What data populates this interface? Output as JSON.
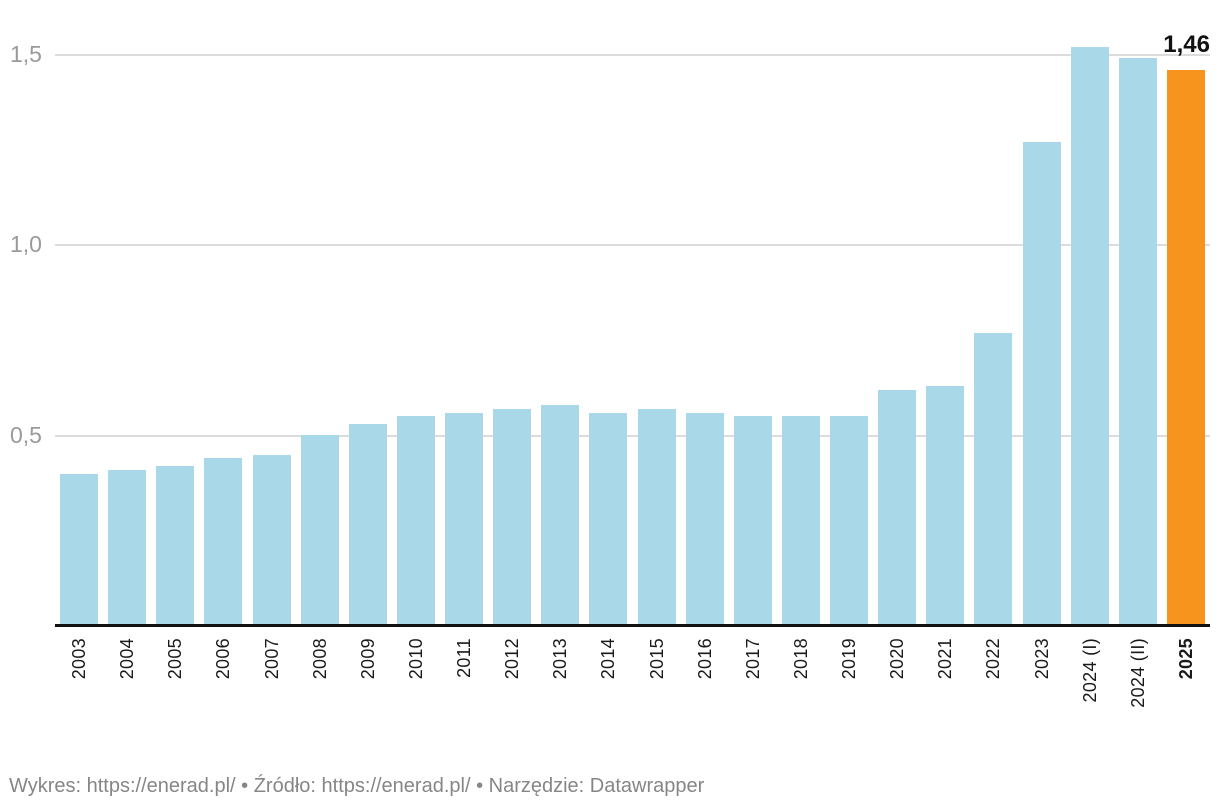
{
  "chart_data": {
    "type": "bar",
    "categories": [
      "2003",
      "2004",
      "2005",
      "2006",
      "2007",
      "2008",
      "2009",
      "2010",
      "2011",
      "2012",
      "2013",
      "2014",
      "2015",
      "2016",
      "2017",
      "2018",
      "2019",
      "2020",
      "2021",
      "2022",
      "2023",
      "2024 (I)",
      "2024 (II)",
      "2025"
    ],
    "values": [
      0.4,
      0.41,
      0.42,
      0.44,
      0.45,
      0.5,
      0.53,
      0.55,
      0.56,
      0.57,
      0.58,
      0.56,
      0.57,
      0.56,
      0.55,
      0.55,
      0.55,
      0.62,
      0.63,
      0.77,
      1.27,
      1.52,
      1.49,
      1.46
    ],
    "highlight_index": 23,
    "highlight_value_label": "1,46",
    "bar_color": "#a9d9e9",
    "highlight_color": "#f7941d",
    "y_ticks": [
      {
        "label": "0,5",
        "value": 0.5
      },
      {
        "label": "1,0",
        "value": 1.0
      },
      {
        "label": "1,5",
        "value": 1.5
      }
    ],
    "ylim": [
      0,
      1.55
    ],
    "grid": true,
    "xlabel": "",
    "ylabel": ""
  },
  "footer": {
    "chart_label": "Wykres: ",
    "chart_link": "https://enerad.pl/",
    "separator1": " • ",
    "source_label": "Źródło: ",
    "source_link": "https://enerad.pl/",
    "separator2": " • ",
    "tool_label": "Narzędzie: ",
    "tool_link": "Datawrapper"
  }
}
